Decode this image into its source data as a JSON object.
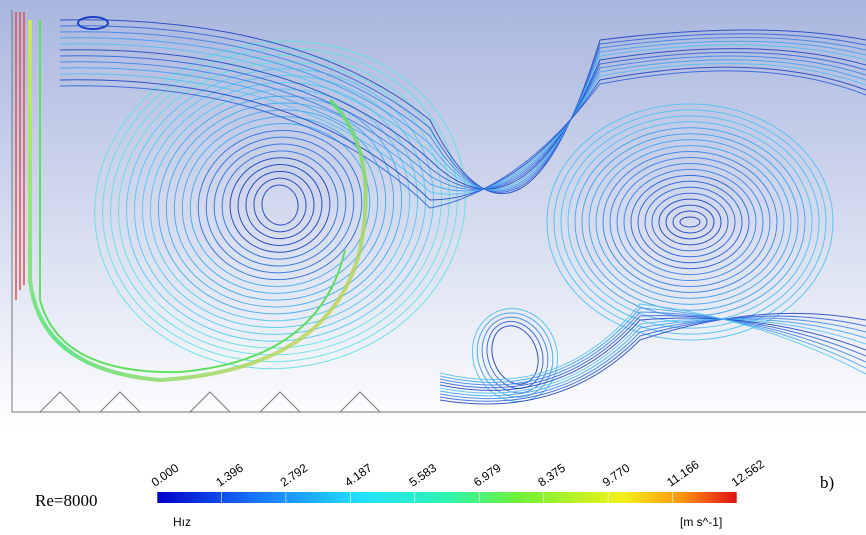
{
  "figure": {
    "label": "Re=8000",
    "panel": "b)",
    "colorbar": {
      "title": "Hız",
      "unit": "[m s^-1]",
      "ticks": [
        "0.000",
        "1.396",
        "2.792",
        "4.187",
        "5.583",
        "6.979",
        "8.375",
        "9.770",
        "11.166",
        "12.562"
      ]
    }
  }
}
